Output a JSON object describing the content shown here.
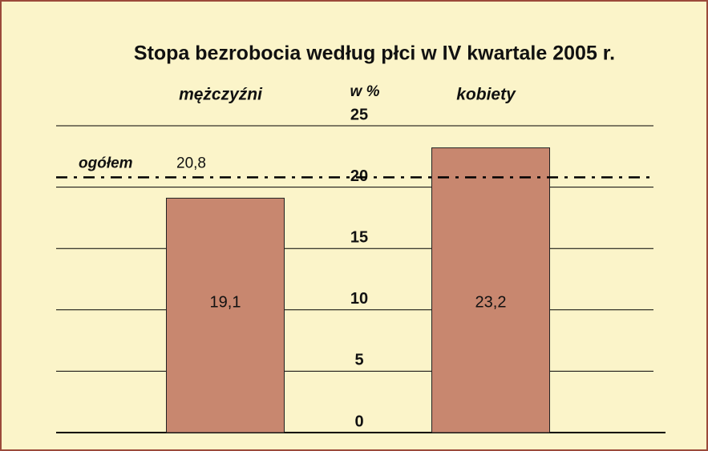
{
  "chart_data": {
    "type": "bar",
    "title": "Stopa bezrobocia według płci w IV kwartale 2005 r.",
    "subtitle": "w %",
    "categories": [
      "mężczyźni",
      "kobiety"
    ],
    "values": [
      19.1,
      23.2
    ],
    "value_labels": [
      "19,1",
      "23,2"
    ],
    "color": "#c8876f",
    "ylim": [
      0,
      25
    ],
    "yticks": [
      0,
      5,
      10,
      15,
      20,
      25
    ],
    "grid": true,
    "reference_line": {
      "label": "ogółem",
      "value": 20.8,
      "value_label": "20,8"
    }
  }
}
